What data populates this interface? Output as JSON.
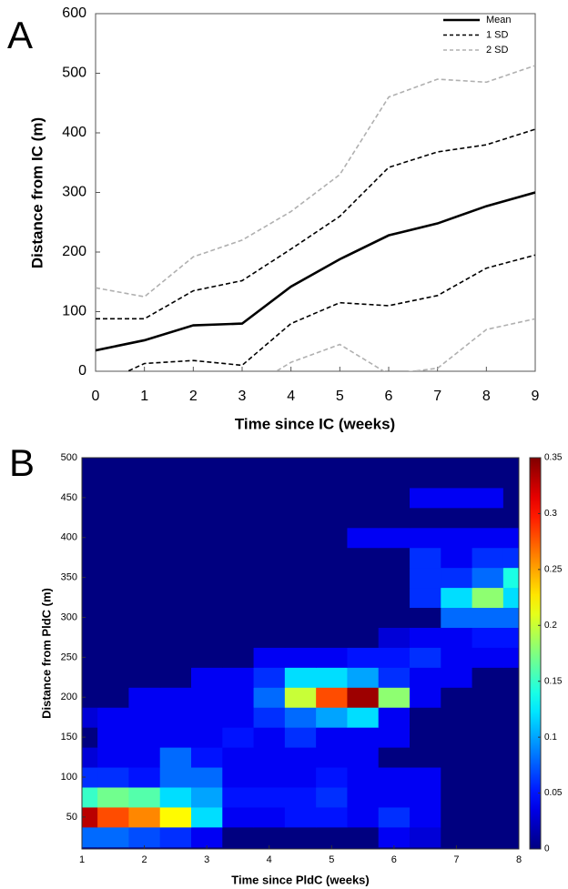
{
  "chart_data": [
    {
      "type": "line",
      "panel": "A",
      "xlabel": "Time since IC (weeks)",
      "ylabel": "Distance from IC (m)",
      "x": [
        0,
        1,
        2,
        3,
        4,
        5,
        6,
        7,
        8,
        9
      ],
      "xlim": [
        0,
        9
      ],
      "ylim": [
        0,
        600
      ],
      "xticks": [
        0,
        1,
        2,
        3,
        4,
        5,
        6,
        7,
        8,
        9
      ],
      "yticks": [
        0,
        100,
        200,
        300,
        400,
        500,
        600
      ],
      "legend": "upper right",
      "series": [
        {
          "name": "Mean",
          "color": "#000000",
          "dash": false,
          "values": [
            35,
            52,
            77,
            80,
            142,
            188,
            228,
            248,
            277,
            300
          ]
        },
        {
          "name": "1 SD",
          "color": "#000000",
          "dash": true,
          "values": [
            88,
            88,
            135,
            152,
            205,
            260,
            342,
            368,
            380,
            406
          ],
          "lower": [
            -25,
            13,
            18,
            10,
            80,
            115,
            110,
            127,
            173,
            195
          ]
        },
        {
          "name": "2 SD",
          "color": "#b0b0b0",
          "dash": true,
          "values": [
            140,
            125,
            192,
            220,
            268,
            330,
            460,
            490,
            485,
            513
          ],
          "lower": [
            -70,
            -50,
            -45,
            -35,
            15,
            45,
            -5,
            5,
            70,
            88
          ]
        }
      ]
    },
    {
      "type": "contour",
      "panel": "B",
      "xlabel": "Time since PldC (weeks)",
      "ylabel": "Distance from PldC (m)",
      "colormap": "jet",
      "xlim": [
        1,
        8
      ],
      "ylim": [
        10,
        500
      ],
      "xticks": [
        1,
        2,
        3,
        4,
        5,
        6,
        7,
        8
      ],
      "yticks": [
        50,
        100,
        150,
        200,
        250,
        300,
        350,
        400,
        450,
        500
      ],
      "x": [
        1,
        1.5,
        2,
        2.5,
        3,
        3.5,
        4,
        4.5,
        5,
        5.5,
        6,
        6.5,
        7,
        7.5,
        8
      ],
      "y": [
        25,
        50,
        75,
        100,
        125,
        150,
        175,
        200,
        225,
        250,
        275,
        300,
        325,
        350,
        375,
        400,
        425,
        450,
        475
      ],
      "z": [
        [
          0.08,
          0.08,
          0.07,
          0.06,
          0.04,
          0,
          0,
          0,
          0,
          0,
          0.04,
          0.03,
          0,
          0,
          0
        ],
        [
          0.33,
          0.28,
          0.26,
          0.22,
          0.12,
          0.04,
          0.04,
          0.05,
          0.05,
          0.04,
          0.06,
          0.04,
          0,
          0,
          0
        ],
        [
          0.15,
          0.17,
          0.16,
          0.12,
          0.1,
          0.05,
          0.05,
          0.05,
          0.06,
          0.04,
          0.04,
          0.04,
          0,
          0,
          0
        ],
        [
          0.06,
          0.06,
          0.05,
          0.08,
          0.08,
          0.04,
          0.04,
          0.04,
          0.05,
          0.04,
          0.04,
          0.04,
          0,
          0,
          0
        ],
        [
          0.03,
          0.04,
          0.04,
          0.08,
          0.05,
          0.04,
          0.04,
          0.04,
          0.04,
          0.04,
          0,
          0,
          0,
          0,
          0
        ],
        [
          0,
          0.04,
          0.04,
          0.04,
          0.04,
          0.05,
          0.04,
          0.06,
          0.04,
          0.04,
          0.04,
          0,
          0,
          0,
          0
        ],
        [
          0.03,
          0.04,
          0.04,
          0.04,
          0.04,
          0.04,
          0.06,
          0.08,
          0.1,
          0.12,
          0.04,
          0,
          0,
          0,
          0
        ],
        [
          0,
          0,
          0.04,
          0.04,
          0.04,
          0.04,
          0.08,
          0.2,
          0.28,
          0.34,
          0.18,
          0.04,
          0,
          0,
          0
        ],
        [
          0,
          0,
          0,
          0,
          0.04,
          0.04,
          0.06,
          0.12,
          0.12,
          0.1,
          0.06,
          0.04,
          0.04,
          0,
          0
        ],
        [
          0,
          0,
          0,
          0,
          0,
          0,
          0.04,
          0.04,
          0.04,
          0.05,
          0.05,
          0.06,
          0.04,
          0.04,
          0.04
        ],
        [
          0,
          0,
          0,
          0,
          0,
          0,
          0,
          0,
          0,
          0,
          0.03,
          0.04,
          0.04,
          0.05,
          0.05
        ],
        [
          0,
          0,
          0,
          0,
          0,
          0,
          0,
          0,
          0,
          0,
          0,
          0,
          0.08,
          0.08,
          0.08
        ],
        [
          0,
          0,
          0,
          0,
          0,
          0,
          0,
          0,
          0,
          0,
          0,
          0.06,
          0.12,
          0.18,
          0.12
        ],
        [
          0,
          0,
          0,
          0,
          0,
          0,
          0,
          0,
          0,
          0,
          0,
          0.06,
          0.06,
          0.08,
          0.14
        ],
        [
          0,
          0,
          0,
          0,
          0,
          0,
          0,
          0,
          0,
          0,
          0,
          0.06,
          0.04,
          0.06,
          0.06
        ],
        [
          0,
          0,
          0,
          0,
          0,
          0,
          0,
          0,
          0,
          0.04,
          0.04,
          0.04,
          0.04,
          0.04,
          0.04
        ],
        [
          0,
          0,
          0,
          0,
          0,
          0,
          0,
          0,
          0,
          0,
          0,
          0,
          0,
          0,
          0
        ],
        [
          0,
          0,
          0,
          0,
          0,
          0,
          0,
          0,
          0,
          0,
          0,
          0.04,
          0.04,
          0.04,
          0
        ],
        [
          0,
          0,
          0,
          0,
          0,
          0,
          0,
          0,
          0,
          0,
          0,
          0,
          0,
          0,
          0
        ]
      ],
      "colorbar": {
        "lim": [
          0,
          0.35
        ],
        "ticks": [
          0,
          0.05,
          0.1,
          0.15,
          0.2,
          0.25,
          0.3,
          0.35
        ]
      }
    }
  ]
}
